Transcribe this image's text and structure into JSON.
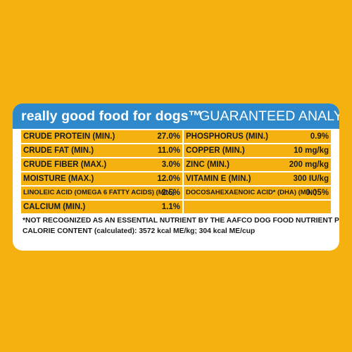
{
  "colors": {
    "background": "#F4B10F",
    "panel": "#FFFFFF",
    "header": "#2E88C9",
    "text": "#1A1A1A"
  },
  "header": {
    "brand": "really good food for dogs™",
    "title": "GUARANTEED ANALYSIS"
  },
  "analysis": {
    "left": [
      {
        "name": "CRUDE PROTEIN (MIN.)",
        "value": "27.0%"
      },
      {
        "name": "CRUDE FAT (MIN.)",
        "value": "11.0%"
      },
      {
        "name": "CRUDE FIBER (MAX.)",
        "value": "3.0%"
      },
      {
        "name": "MOISTURE (MAX.)",
        "value": "12.0%"
      },
      {
        "name": "LINOLEIC ACID (OMEGA 6 FATTY ACIDS) (MIN.)",
        "value": "2.5%"
      },
      {
        "name": "CALCIUM (MIN.)",
        "value": "1.1%"
      }
    ],
    "right": [
      {
        "name": "PHOSPHORUS (MIN.)",
        "value": "0.9%"
      },
      {
        "name": "COPPER (MIN.)",
        "value": "10 mg/kg"
      },
      {
        "name": "ZINC (MIN.)",
        "value": "200 mg/kg"
      },
      {
        "name": "VITAMIN E (MIN.)",
        "value": "300 IU/kg"
      },
      {
        "name": "DOCOSAHEXAENOIC ACID* (DHA) (MIN.)",
        "value": "0.05%"
      },
      {
        "name": "",
        "value": ""
      }
    ]
  },
  "footnote": {
    "line1": "*NOT RECOGNIZED AS AN ESSENTIAL NUTRIENT BY THE AAFCO DOG FOOD NUTRIENT PROFILES.",
    "line2": "CALORIE CONTENT (calculated): 3572 kcal ME/kg; 304 kcal ME/cup"
  }
}
